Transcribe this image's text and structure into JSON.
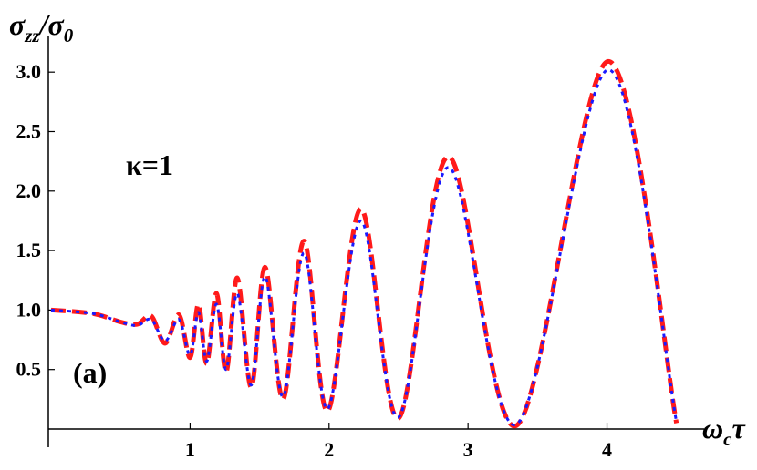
{
  "chart_data": {
    "type": "line",
    "title": "",
    "ylabel": "σzz/σ0",
    "ylabel_parts": {
      "main": "σ",
      "sub1": "zz",
      "slash": "/σ",
      "sub2": "0"
    },
    "xlabel_parts": {
      "main": "ω",
      "sub": "c",
      "tail": "τ"
    },
    "xlim": [
      -0.02,
      4.62
    ],
    "ylim": [
      0.0,
      3.3
    ],
    "x_ticks": [
      1,
      2,
      3,
      4
    ],
    "x_tick_labels": [
      "1",
      "2",
      "3",
      "4"
    ],
    "y_ticks": [
      0.5,
      1.0,
      1.5,
      2.0,
      2.5,
      3.0
    ],
    "y_tick_labels": [
      "0.5",
      "1.0",
      "1.5",
      "2.0",
      "2.5",
      "3.0"
    ],
    "grid": false,
    "annotations": {
      "kappa": "κ=1",
      "panel": "(a)"
    },
    "series": [
      {
        "style": "red dashed",
        "color": "#ff1a1a",
        "x": [
          0.0,
          0.3,
          0.5,
          0.62,
          0.72,
          0.82,
          0.92,
          1.0,
          1.06,
          1.12,
          1.19,
          1.26,
          1.34,
          1.44,
          1.54,
          1.67,
          1.82,
          1.99,
          2.23,
          2.5,
          2.86,
          3.35,
          4.01,
          4.5
        ],
        "y": [
          1.0,
          0.97,
          0.9,
          0.88,
          0.95,
          0.72,
          0.96,
          0.6,
          1.05,
          0.55,
          1.14,
          0.48,
          1.27,
          0.35,
          1.36,
          0.25,
          1.58,
          0.15,
          1.85,
          0.09,
          2.29,
          0.03,
          3.09,
          0.05
        ]
      },
      {
        "style": "blue dotted",
        "color": "#1a1aff",
        "x": [
          0.0,
          0.3,
          0.5,
          0.62,
          0.72,
          0.82,
          0.92,
          1.0,
          1.06,
          1.12,
          1.19,
          1.26,
          1.34,
          1.44,
          1.54,
          1.67,
          1.82,
          1.99,
          2.23,
          2.5,
          2.86,
          3.35,
          4.01,
          4.5
        ],
        "y": [
          1.0,
          0.97,
          0.9,
          0.87,
          0.92,
          0.74,
          0.92,
          0.62,
          0.98,
          0.57,
          1.05,
          0.5,
          1.14,
          0.37,
          1.28,
          0.27,
          1.48,
          0.17,
          1.75,
          0.1,
          2.2,
          0.04,
          3.02,
          0.06
        ]
      }
    ]
  }
}
